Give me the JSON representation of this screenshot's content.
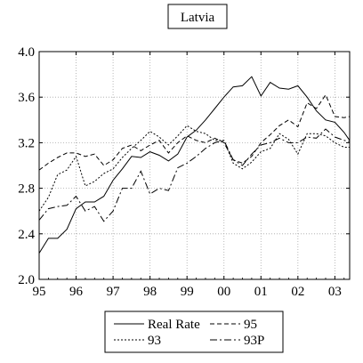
{
  "chart_data": {
    "type": "line",
    "title": "Latvia",
    "xlabel": "",
    "ylabel": "",
    "xlim": [
      1995.0,
      2003.4
    ],
    "ylim": [
      2.0,
      4.0
    ],
    "x_ticks": [
      {
        "value": 1995,
        "label": "95"
      },
      {
        "value": 1996,
        "label": "96"
      },
      {
        "value": 1997,
        "label": "97"
      },
      {
        "value": 1998,
        "label": "98"
      },
      {
        "value": 1999,
        "label": "99"
      },
      {
        "value": 2000,
        "label": "00"
      },
      {
        "value": 2001,
        "label": "01"
      },
      {
        "value": 2002,
        "label": "02"
      },
      {
        "value": 2003,
        "label": "03"
      }
    ],
    "y_ticks": [
      "2.0",
      "2.4",
      "2.8",
      "3.2",
      "3.6",
      "4.0"
    ],
    "grid": true,
    "legend_position": "bottom",
    "x": [
      1995.0,
      1995.25,
      1995.5,
      1995.75,
      1996.0,
      1996.25,
      1996.5,
      1996.75,
      1997.0,
      1997.25,
      1997.5,
      1997.75,
      1998.0,
      1998.25,
      1998.5,
      1998.75,
      1999.0,
      1999.25,
      1999.5,
      1999.75,
      2000.0,
      2000.25,
      2000.5,
      2000.75,
      2001.0,
      2001.25,
      2001.5,
      2001.75,
      2002.0,
      2002.25,
      2002.5,
      2002.75,
      2003.0,
      2003.25,
      2003.4
    ],
    "series": [
      {
        "name": "Real Rate",
        "dash": "",
        "values": [
          2.23,
          2.36,
          2.36,
          2.44,
          2.62,
          2.68,
          2.68,
          2.73,
          2.87,
          2.97,
          3.08,
          3.07,
          3.12,
          3.09,
          3.04,
          3.1,
          3.25,
          3.31,
          3.4,
          3.5,
          3.6,
          3.69,
          3.7,
          3.78,
          3.61,
          3.73,
          3.68,
          3.67,
          3.7,
          3.6,
          3.48,
          3.4,
          3.38,
          3.29,
          3.22
        ]
      },
      {
        "name": "95",
        "dash": "5,3",
        "values": [
          2.96,
          3.02,
          3.07,
          3.11,
          3.11,
          3.08,
          3.1,
          3.0,
          3.05,
          3.15,
          3.18,
          3.13,
          3.18,
          3.22,
          3.11,
          3.2,
          3.26,
          3.22,
          3.2,
          3.24,
          3.2,
          3.05,
          3.02,
          3.08,
          3.2,
          3.27,
          3.35,
          3.4,
          3.34,
          3.55,
          3.5,
          3.62,
          3.43,
          3.42,
          3.43
        ]
      },
      {
        "name": "93",
        "dash": "2,2",
        "values": [
          2.6,
          2.72,
          2.92,
          2.96,
          3.08,
          2.82,
          2.86,
          2.93,
          2.97,
          3.07,
          3.15,
          3.22,
          3.3,
          3.25,
          3.18,
          3.26,
          3.35,
          3.3,
          3.28,
          3.22,
          3.22,
          3.02,
          2.97,
          3.03,
          3.12,
          3.15,
          3.28,
          3.23,
          3.1,
          3.28,
          3.28,
          3.26,
          3.2,
          3.16,
          3.16
        ]
      },
      {
        "name": "93P",
        "dash": "8,3,2,3",
        "values": [
          2.52,
          2.62,
          2.64,
          2.65,
          2.73,
          2.6,
          2.64,
          2.51,
          2.6,
          2.8,
          2.8,
          2.95,
          2.75,
          2.8,
          2.78,
          2.98,
          3.02,
          3.08,
          3.15,
          3.2,
          3.22,
          3.05,
          3.0,
          3.1,
          3.18,
          3.2,
          3.24,
          3.2,
          3.2,
          3.25,
          3.24,
          3.32,
          3.25,
          3.22,
          3.21
        ]
      }
    ],
    "legend": {
      "rows": [
        [
          "Real Rate",
          "95"
        ],
        [
          "93",
          "93P"
        ]
      ]
    }
  }
}
